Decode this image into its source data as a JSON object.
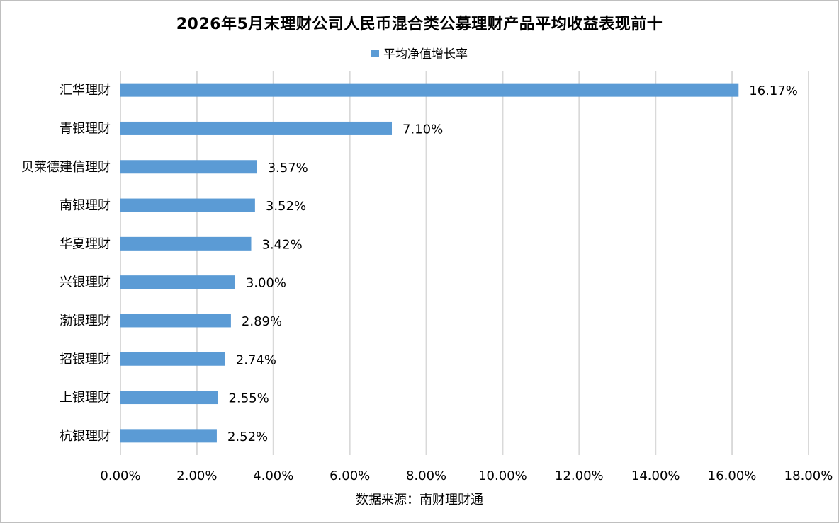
{
  "chart_data": {
    "type": "bar",
    "orientation": "horizontal",
    "title": "2026年5月末理财公司人民币混合类公募理财产品平均收益表现前十",
    "legend": {
      "position": "top",
      "entries": [
        "平均净值增长率"
      ]
    },
    "categories": [
      "汇华理财",
      "青银理财",
      "贝莱德建信理财",
      "南银理财",
      "华夏理财",
      "兴银理财",
      "渤银理财",
      "招银理财",
      "上银理财",
      "杭银理财"
    ],
    "series": [
      {
        "name": "平均净值增长率",
        "color": "#5b9bd5",
        "values": [
          16.17,
          7.1,
          3.57,
          3.52,
          3.42,
          3.0,
          2.89,
          2.74,
          2.55,
          2.52
        ]
      }
    ],
    "data_labels": [
      "16.17%",
      "7.10%",
      "3.57%",
      "3.52%",
      "3.42%",
      "3.00%",
      "2.89%",
      "2.74%",
      "2.55%",
      "2.52%"
    ],
    "xlim": [
      0,
      18
    ],
    "x_ticks": [
      0,
      2,
      4,
      6,
      8,
      10,
      12,
      14,
      16,
      18
    ],
    "x_tick_labels": [
      "0.00%",
      "2.00%",
      "4.00%",
      "6.00%",
      "8.00%",
      "10.00%",
      "12.00%",
      "14.00%",
      "16.00%",
      "18.00%"
    ],
    "grid": "vertical",
    "source_note": "数据来源：南财理财通"
  },
  "colors": {
    "bar": "#5b9bd5",
    "grid": "#d9d9d9",
    "border": "#bfbfbf"
  }
}
